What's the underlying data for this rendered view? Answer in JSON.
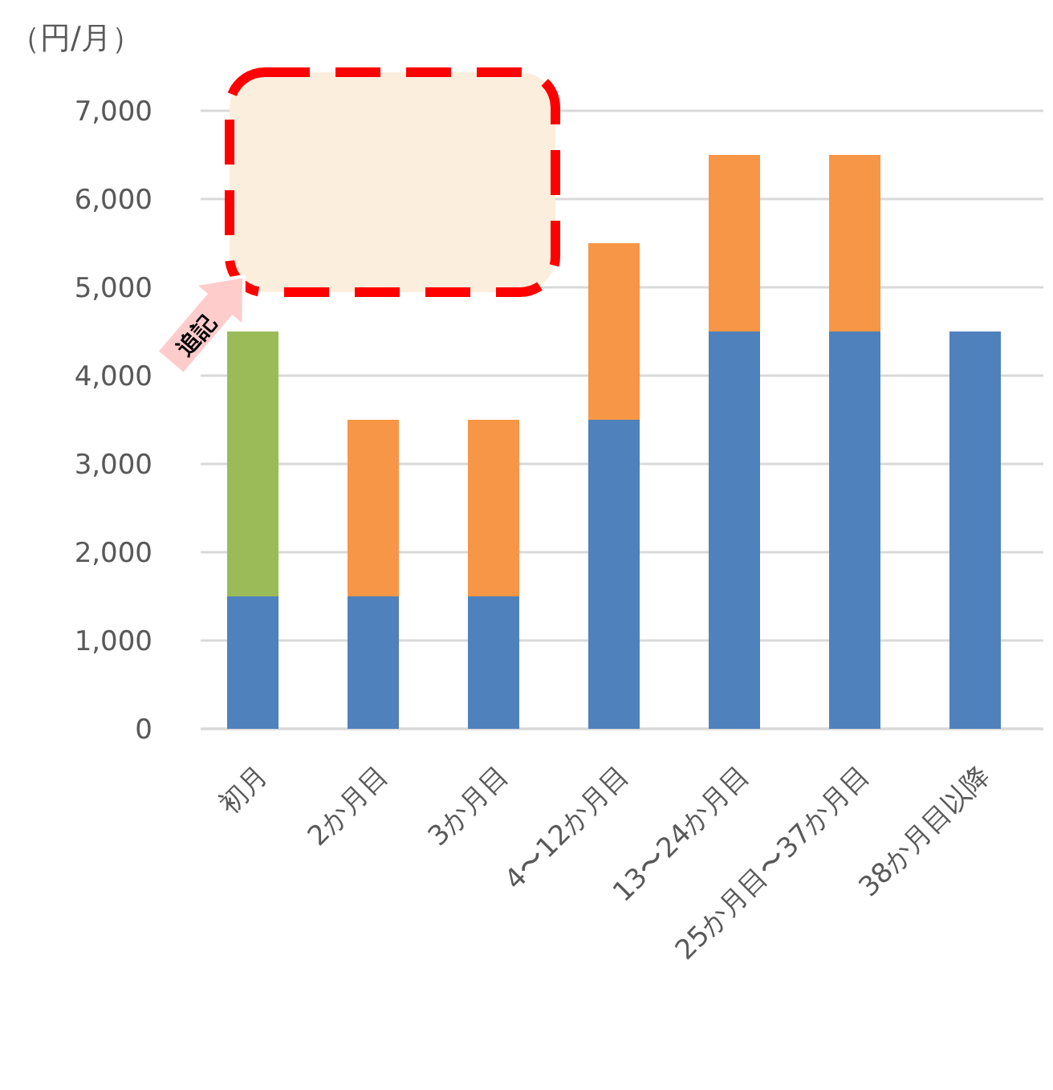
{
  "chart_data": {
    "type": "bar",
    "stacked": true,
    "ylabel": "（円/月）",
    "categories": [
      "初月",
      "2か月目",
      "3か月目",
      "4〜12か月目",
      "13〜24か月目",
      "25か月目〜37か月目",
      "38か月目以降"
    ],
    "series": [
      {
        "color": "#4f81bd",
        "values": [
          1500,
          1500,
          1500,
          3500,
          4500,
          4500,
          4500
        ]
      },
      {
        "color": "#9bbb59",
        "values": [
          3000,
          null,
          null,
          null,
          null,
          null,
          null
        ]
      },
      {
        "color": "#f79646",
        "values": [
          null,
          2000,
          2000,
          2000,
          2000,
          2000,
          null
        ]
      }
    ],
    "ylim": [
      0,
      7000
    ],
    "yticks": [
      {
        "value": 0,
        "label": "0"
      },
      {
        "value": 1000,
        "label": "1,000"
      },
      {
        "value": 2000,
        "label": "2,000"
      },
      {
        "value": 3000,
        "label": "3,000"
      },
      {
        "value": 4000,
        "label": "4,000"
      },
      {
        "value": 5000,
        "label": "5,000"
      },
      {
        "value": 6000,
        "label": "6,000"
      },
      {
        "value": 7000,
        "label": "7,000"
      }
    ],
    "grid": "y",
    "annotations": [
      "追記"
    ]
  }
}
